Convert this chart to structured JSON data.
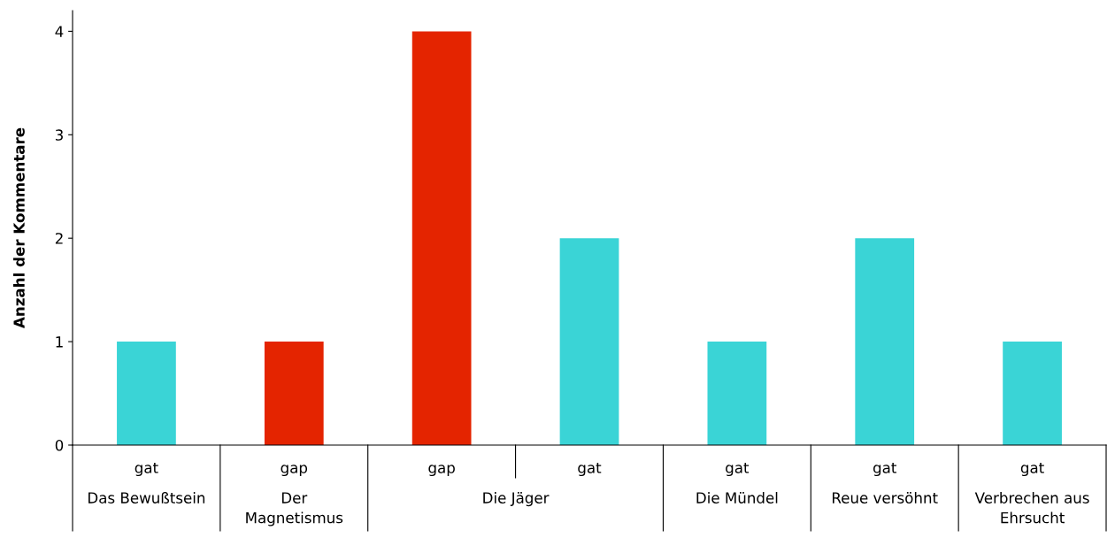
{
  "chart_data": {
    "type": "bar",
    "categories": [
      "gat",
      "gap",
      "gap",
      "gat",
      "gat",
      "gat",
      "gat"
    ],
    "values": [
      1,
      1,
      4,
      2,
      1,
      2,
      1
    ],
    "colors": [
      "#3ad4d6",
      "#e42400",
      "#e42400",
      "#3ad4d6",
      "#3ad4d6",
      "#3ad4d6",
      "#3ad4d6"
    ],
    "ylabel": "Anzahl der Kommentare",
    "ylim": [
      0,
      4.2
    ],
    "yticks": [
      0,
      1,
      2,
      3,
      4
    ],
    "annotations": [
      "Das Bewußtsein",
      "Der\nMagnetismus",
      "Die Jäger",
      "Die Mündel",
      "Reue versöhnt",
      "Verbrechen aus\nEhrsucht"
    ],
    "grid": false,
    "legend": false
  }
}
